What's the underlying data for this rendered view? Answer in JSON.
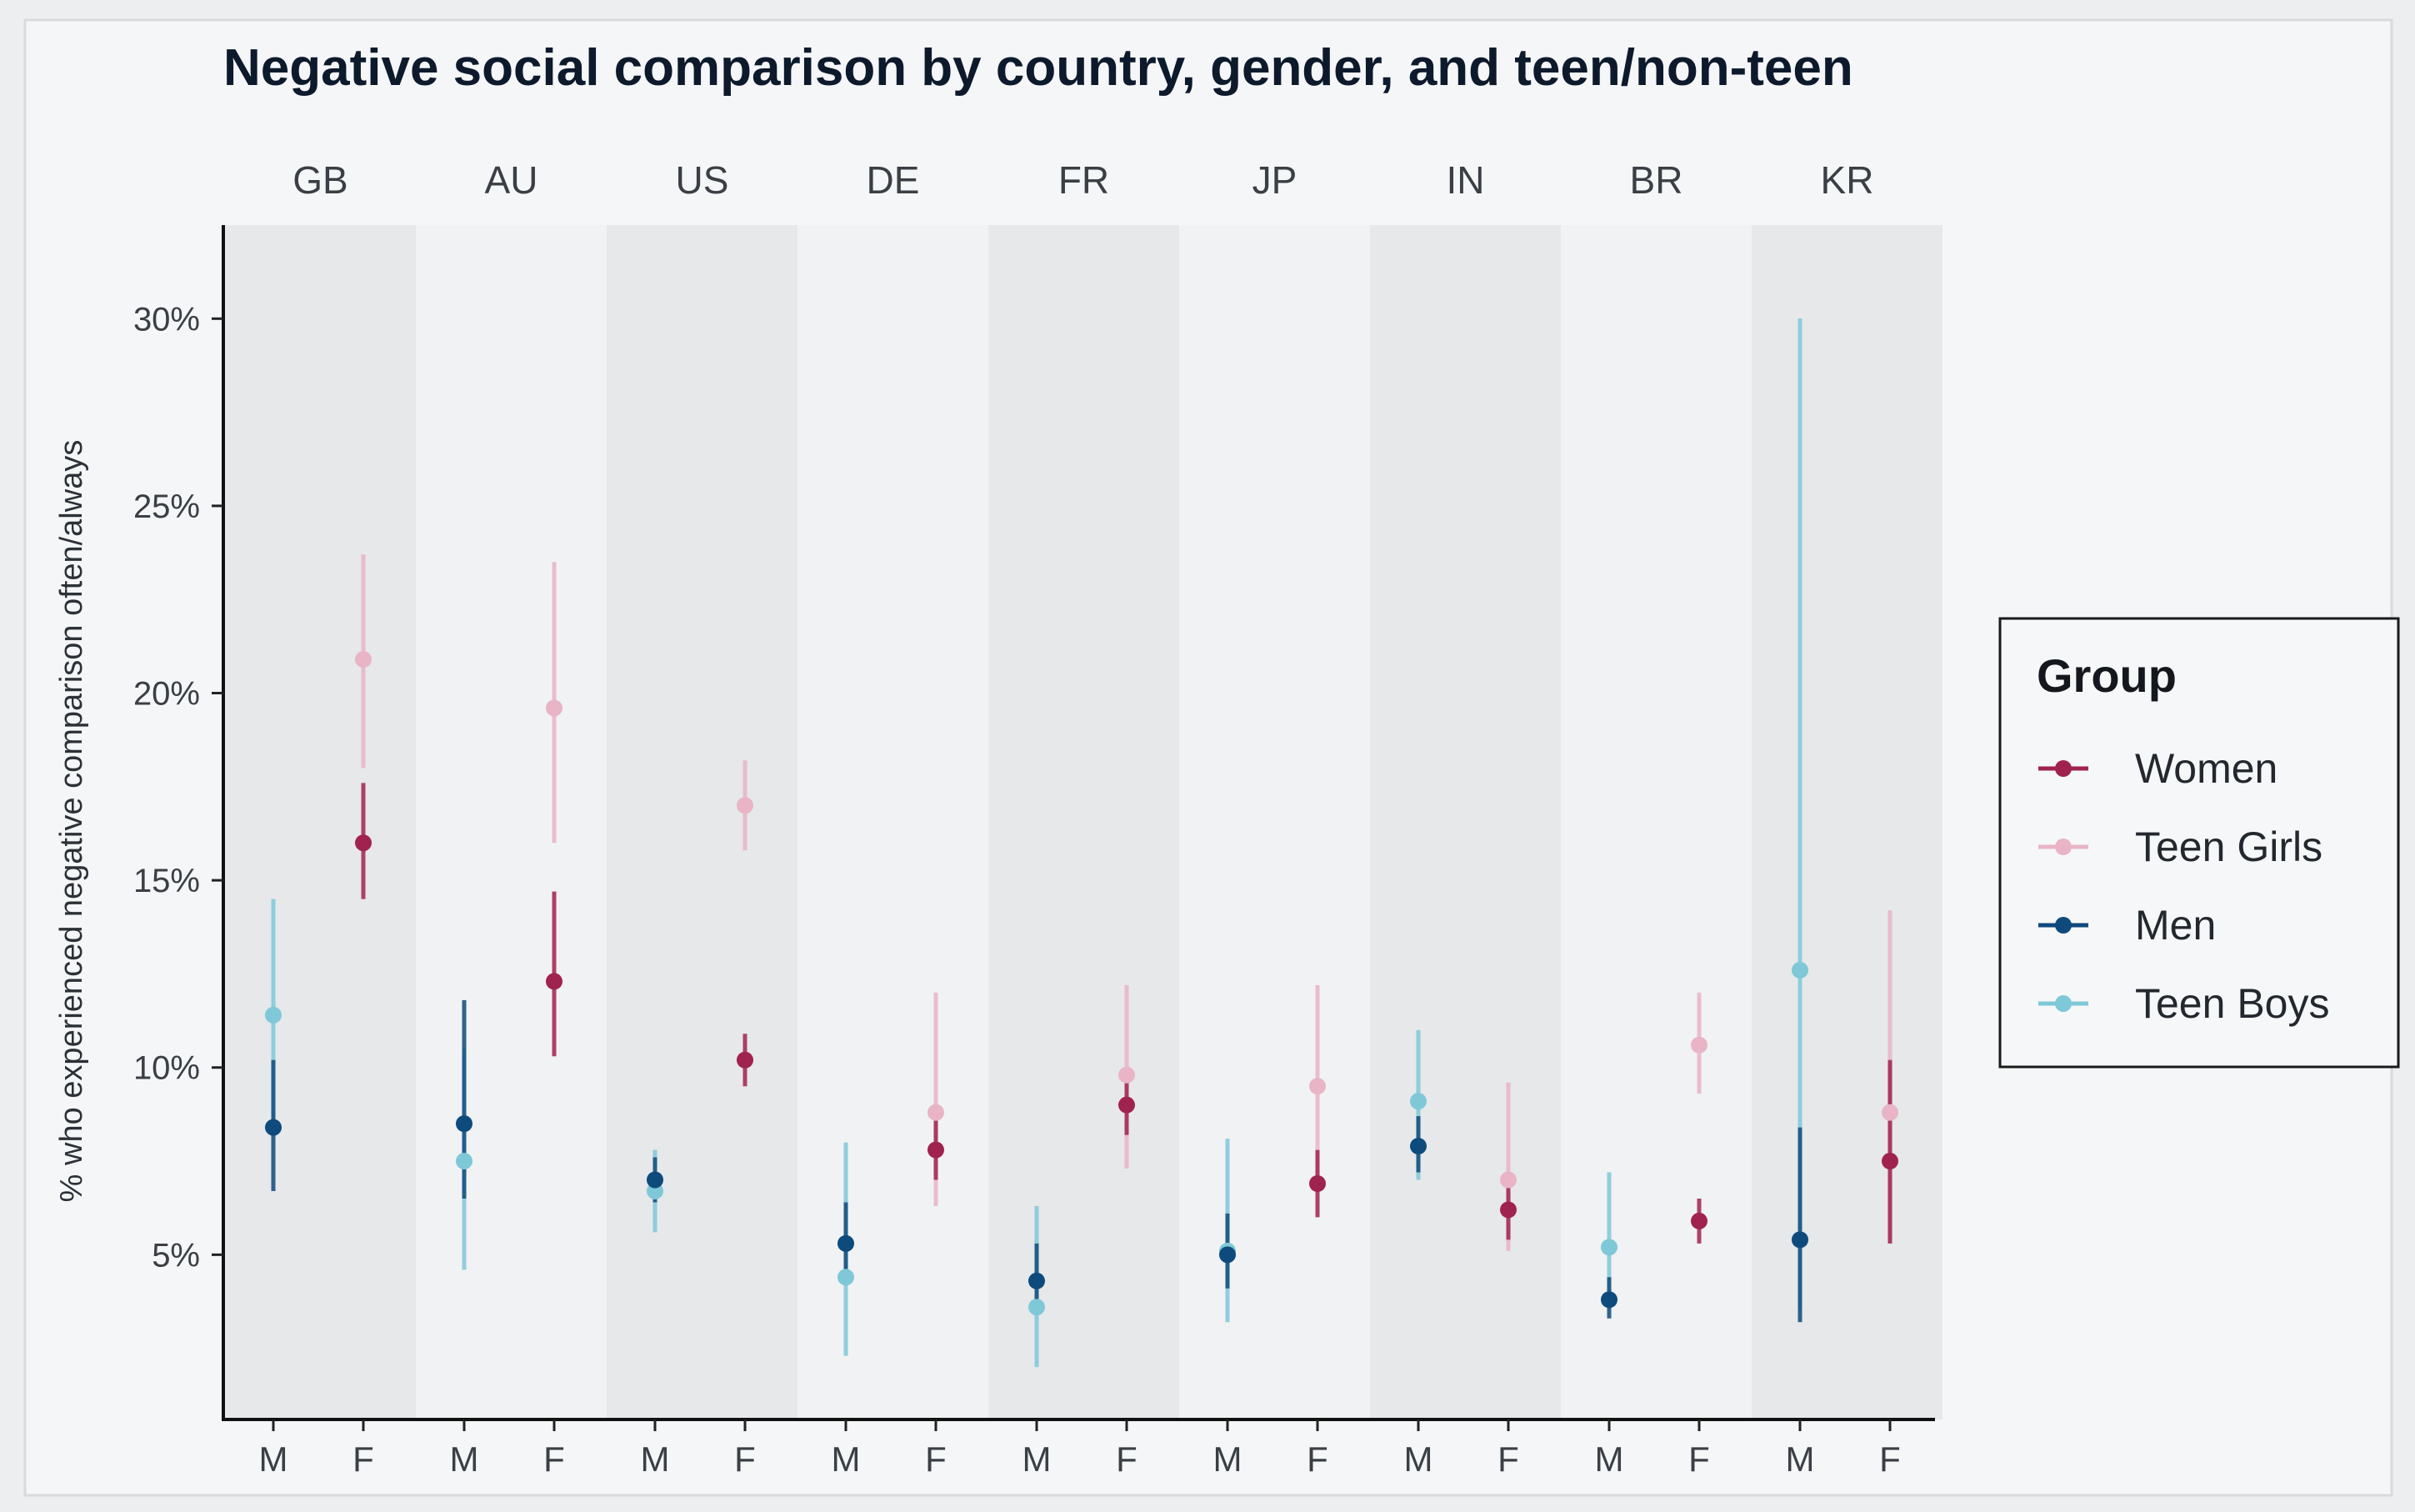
{
  "chart_data": {
    "type": "scatter",
    "title": "Negative social comparison by country, gender, and teen/non-teen",
    "ylabel": "% who experienced negative comparison often/always",
    "xlabel": "",
    "ylim": [
      0.6,
      32.5
    ],
    "y_ticks": [
      5,
      10,
      15,
      20,
      25,
      30
    ],
    "y_tick_labels": [
      "5%",
      "10%",
      "15%",
      "20%",
      "25%",
      "30%"
    ],
    "facets": [
      "GB",
      "AU",
      "US",
      "DE",
      "FR",
      "JP",
      "IN",
      "BR",
      "KR"
    ],
    "categories": [
      "M",
      "F"
    ],
    "grid": false,
    "legend": {
      "title": "Group",
      "placement": "right",
      "entries": [
        "Women",
        "Teen Girls",
        "Men",
        "Teen Boys"
      ]
    },
    "colors": {
      "Women": "#a0224f",
      "Teen Girls": "#e8b4c6",
      "Men": "#0e4a7c",
      "Teen Boys": "#7ec8d8"
    },
    "series": [
      {
        "name": "Women",
        "gender": "F",
        "points": [
          {
            "country": "GB",
            "y": 16.0,
            "lo": 14.5,
            "hi": 17.6
          },
          {
            "country": "AU",
            "y": 12.3,
            "lo": 10.3,
            "hi": 14.7
          },
          {
            "country": "US",
            "y": 10.2,
            "lo": 9.5,
            "hi": 10.9
          },
          {
            "country": "DE",
            "y": 7.8,
            "lo": 7.0,
            "hi": 8.6
          },
          {
            "country": "FR",
            "y": 9.0,
            "lo": 8.2,
            "hi": 9.8
          },
          {
            "country": "JP",
            "y": 6.9,
            "lo": 6.0,
            "hi": 7.8
          },
          {
            "country": "IN",
            "y": 6.2,
            "lo": 5.4,
            "hi": 7.0
          },
          {
            "country": "BR",
            "y": 5.9,
            "lo": 5.3,
            "hi": 6.5
          },
          {
            "country": "KR",
            "y": 7.5,
            "lo": 5.3,
            "hi": 10.2
          }
        ]
      },
      {
        "name": "Teen Girls",
        "gender": "F",
        "points": [
          {
            "country": "GB",
            "y": 20.9,
            "lo": 18.0,
            "hi": 23.7
          },
          {
            "country": "AU",
            "y": 19.6,
            "lo": 16.0,
            "hi": 23.5
          },
          {
            "country": "US",
            "y": 17.0,
            "lo": 15.8,
            "hi": 18.2
          },
          {
            "country": "DE",
            "y": 8.8,
            "lo": 6.3,
            "hi": 12.0
          },
          {
            "country": "FR",
            "y": 9.8,
            "lo": 7.3,
            "hi": 12.2
          },
          {
            "country": "JP",
            "y": 9.5,
            "lo": 6.8,
            "hi": 12.2
          },
          {
            "country": "IN",
            "y": 7.0,
            "lo": 5.1,
            "hi": 9.6
          },
          {
            "country": "BR",
            "y": 10.6,
            "lo": 9.3,
            "hi": 12.0
          },
          {
            "country": "KR",
            "y": 8.8,
            "lo": 5.3,
            "hi": 14.2
          }
        ]
      },
      {
        "name": "Men",
        "gender": "M",
        "points": [
          {
            "country": "GB",
            "y": 8.4,
            "lo": 6.7,
            "hi": 10.2
          },
          {
            "country": "AU",
            "y": 8.5,
            "lo": 6.5,
            "hi": 11.8
          },
          {
            "country": "US",
            "y": 7.0,
            "lo": 6.4,
            "hi": 7.6
          },
          {
            "country": "DE",
            "y": 5.3,
            "lo": 4.4,
            "hi": 6.4
          },
          {
            "country": "FR",
            "y": 4.3,
            "lo": 3.4,
            "hi": 5.3
          },
          {
            "country": "JP",
            "y": 5.0,
            "lo": 4.1,
            "hi": 6.1
          },
          {
            "country": "IN",
            "y": 7.9,
            "lo": 7.2,
            "hi": 8.7
          },
          {
            "country": "BR",
            "y": 3.8,
            "lo": 3.3,
            "hi": 4.4
          },
          {
            "country": "KR",
            "y": 5.4,
            "lo": 3.2,
            "hi": 8.4
          }
        ]
      },
      {
        "name": "Teen Boys",
        "gender": "M",
        "points": [
          {
            "country": "GB",
            "y": 11.4,
            "lo": 8.4,
            "hi": 14.5
          },
          {
            "country": "AU",
            "y": 7.5,
            "lo": 4.6,
            "hi": 10.5
          },
          {
            "country": "US",
            "y": 6.7,
            "lo": 5.6,
            "hi": 7.8
          },
          {
            "country": "DE",
            "y": 4.4,
            "lo": 2.3,
            "hi": 8.0
          },
          {
            "country": "FR",
            "y": 3.6,
            "lo": 2.0,
            "hi": 6.3
          },
          {
            "country": "JP",
            "y": 5.1,
            "lo": 3.2,
            "hi": 8.1
          },
          {
            "country": "IN",
            "y": 9.1,
            "lo": 7.0,
            "hi": 11.0
          },
          {
            "country": "BR",
            "y": 5.2,
            "lo": 3.6,
            "hi": 7.2
          },
          {
            "country": "KR",
            "y": 12.6,
            "lo": 3.5,
            "hi": 30.0
          }
        ]
      }
    ]
  }
}
